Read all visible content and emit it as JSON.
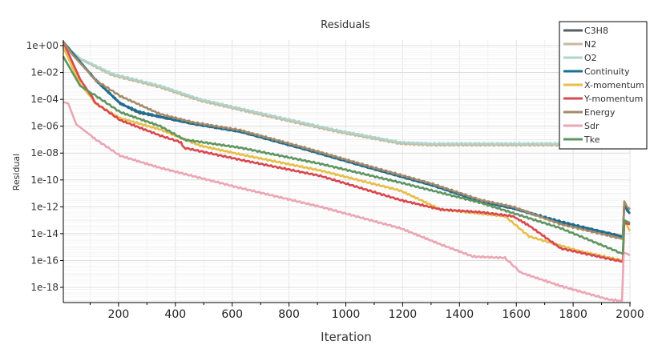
{
  "chart_data": {
    "type": "line",
    "title": "Residuals",
    "xlabel": "Iteration",
    "ylabel": "Residual",
    "yscale": "log",
    "xlim": [
      5,
      2000
    ],
    "ylim_log10": [
      -19.1,
      0.4
    ],
    "xticks": [
      200,
      400,
      600,
      800,
      1000,
      1200,
      1400,
      1600,
      1800,
      2000
    ],
    "yticks": [
      "1e+00",
      "1e-02",
      "1e-04",
      "1e-06",
      "1e-08",
      "1e-10",
      "1e-12",
      "1e-14",
      "1e-16",
      "1e-18"
    ],
    "ytick_log10": [
      0,
      -2,
      -4,
      -6,
      -8,
      -10,
      -12,
      -14,
      -16,
      -18
    ],
    "grid": true,
    "legend_position": "top-right",
    "series": [
      {
        "name": "C3H8",
        "color": "#555d66",
        "x": [
          5,
          121,
          206,
          270,
          347,
          460,
          629,
          855,
          1052,
          1306,
          1475,
          1588,
          1757,
          1975,
          1980,
          1990,
          2000
        ],
        "log10": [
          0.3,
          -2.6,
          -4.3,
          -5.0,
          -5.3,
          -5.8,
          -6.4,
          -7.7,
          -8.9,
          -10.4,
          -11.6,
          -12.1,
          -13.2,
          -14.2,
          -11.8,
          -12.3,
          -12.5
        ]
      },
      {
        "name": "N2",
        "color": "#c8b89a",
        "x": [
          5,
          65,
          178,
          347,
          488,
          714,
          968,
          1193,
          1300,
          2000
        ],
        "log10": [
          0.1,
          -1.0,
          -2.2,
          -3.1,
          -4.1,
          -5.2,
          -6.4,
          -7.3,
          -7.4,
          -7.4
        ]
      },
      {
        "name": "O2",
        "color": "#aed4cb",
        "x": [
          5,
          65,
          178,
          347,
          488,
          714,
          968,
          1193,
          1300,
          2000
        ],
        "log10": [
          0.1,
          -0.95,
          -2.1,
          -3.0,
          -4.0,
          -5.1,
          -6.3,
          -7.2,
          -7.3,
          -7.3
        ]
      },
      {
        "name": "Continuity",
        "color": "#1a6f95",
        "x": [
          5,
          121,
          206,
          270,
          347,
          460,
          629,
          855,
          1052,
          1306,
          1475,
          1588,
          1757,
          1975,
          1980,
          1990,
          2000
        ],
        "log10": [
          0.3,
          -2.6,
          -4.3,
          -4.9,
          -5.3,
          -5.8,
          -6.4,
          -7.7,
          -8.9,
          -10.4,
          -11.6,
          -12.1,
          -13.1,
          -14.25,
          -11.8,
          -12.2,
          -12.5
        ]
      },
      {
        "name": "X-momentum",
        "color": "#e6bf4a",
        "x": [
          5,
          65,
          121,
          206,
          347,
          488,
          629,
          911,
          1193,
          1334,
          1560,
          1645,
          1814,
          1975,
          1980,
          2000
        ],
        "log10": [
          -0.1,
          -2.85,
          -4.35,
          -5.4,
          -6.25,
          -7.45,
          -8.1,
          -9.3,
          -10.8,
          -12.2,
          -12.7,
          -14.2,
          -15.25,
          -16.0,
          -13.0,
          -13.8
        ]
      },
      {
        "name": "Y-momentum",
        "color": "#d9474f",
        "x": [
          5,
          65,
          121,
          206,
          347,
          420,
          430,
          629,
          911,
          1193,
          1334,
          1475,
          1588,
          1645,
          1757,
          1975,
          1980,
          2000
        ],
        "log10": [
          0.3,
          -2.5,
          -4.3,
          -5.55,
          -6.7,
          -7.2,
          -7.6,
          -8.5,
          -9.7,
          -11.5,
          -12.2,
          -12.4,
          -12.7,
          -13.4,
          -15.1,
          -16.1,
          -13.2,
          -13.3
        ]
      },
      {
        "name": "Energy",
        "color": "#a38b6b",
        "x": [
          5,
          37,
          121,
          206,
          347,
          460,
          629,
          855,
          1052,
          1306,
          1475,
          1588,
          1757,
          1975,
          1980,
          1990,
          2000
        ],
        "log10": [
          0.3,
          -0.65,
          -2.6,
          -3.75,
          -5.1,
          -5.7,
          -6.3,
          -7.6,
          -8.8,
          -10.3,
          -11.5,
          -12.0,
          -13.3,
          -14.4,
          -11.6,
          -12.0,
          -12.2
        ]
      },
      {
        "name": "Sdr",
        "color": "#eaa6b4",
        "x": [
          5,
          23,
          51,
          121,
          206,
          347,
          629,
          911,
          1193,
          1334,
          1447,
          1560,
          1616,
          1757,
          1925,
          1972,
          1978,
          1990,
          2000
        ],
        "log10": [
          -4.2,
          -4.3,
          -5.85,
          -7.0,
          -8.2,
          -9.1,
          -10.6,
          -12.0,
          -13.6,
          -14.8,
          -15.7,
          -15.8,
          -16.9,
          -17.9,
          -18.9,
          -19.0,
          -15.4,
          -15.5,
          -15.6
        ]
      },
      {
        "name": "Tke",
        "color": "#5f9660",
        "x": [
          5,
          65,
          121,
          206,
          347,
          432,
          629,
          911,
          1193,
          1475,
          1757,
          1975,
          1980,
          2000
        ],
        "log10": [
          -0.8,
          -3.0,
          -3.75,
          -4.95,
          -6.0,
          -7.0,
          -7.6,
          -8.8,
          -10.2,
          -11.7,
          -13.6,
          -15.5,
          -13.0,
          -13.2
        ]
      }
    ]
  }
}
